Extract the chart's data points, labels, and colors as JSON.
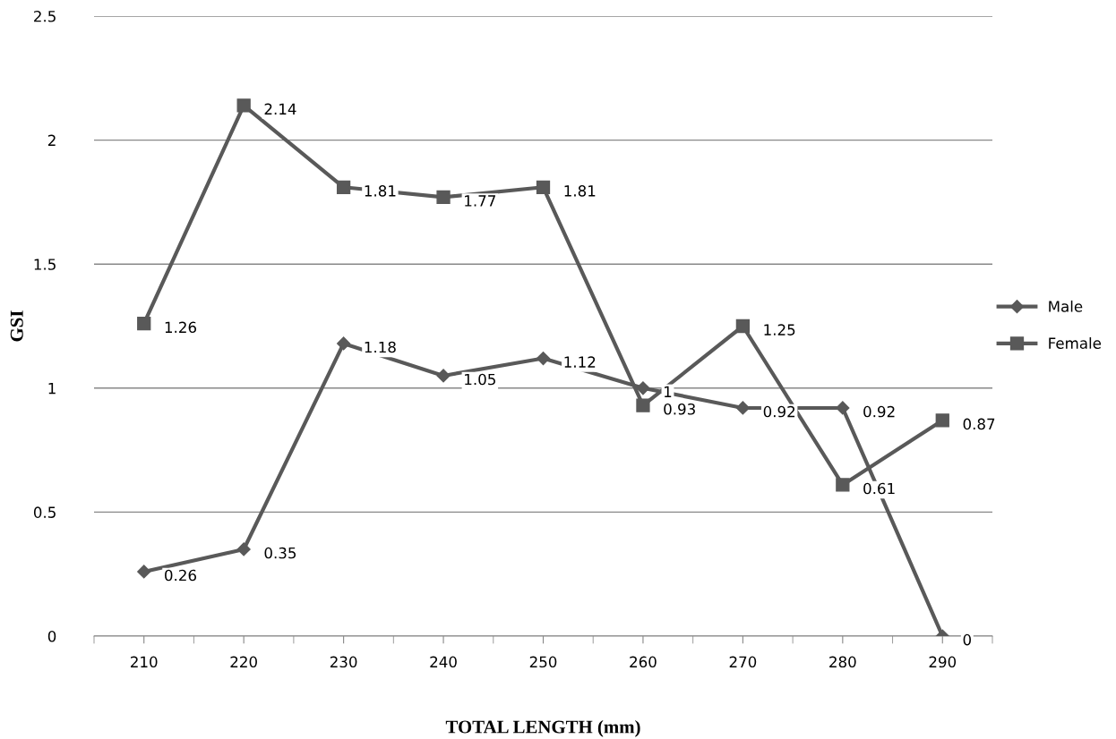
{
  "chart_data": {
    "type": "line",
    "xlabel": "TOTAL LENGTH (mm)",
    "ylabel": "GSI",
    "categories": [
      "210",
      "220",
      "230",
      "240",
      "250",
      "260",
      "270",
      "280",
      "290"
    ],
    "series": [
      {
        "name": "Male",
        "color": "#595959",
        "marker": "diamond",
        "values": [
          0.26,
          0.35,
          1.18,
          1.05,
          1.12,
          1,
          0.92,
          0.92,
          0
        ]
      },
      {
        "name": "Female",
        "color": "#595959",
        "marker": "square",
        "values": [
          1.26,
          2.14,
          1.81,
          1.77,
          1.81,
          0.93,
          1.25,
          0.61,
          0.87
        ]
      }
    ],
    "ylim": [
      0,
      2.5
    ],
    "yticks": [
      0,
      0.5,
      1,
      1.5,
      2,
      2.5
    ],
    "grid": "y",
    "legend": "right",
    "data_labels": true
  }
}
